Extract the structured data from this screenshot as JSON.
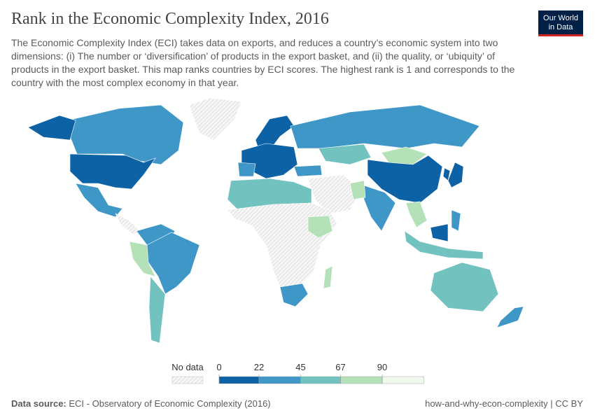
{
  "header": {
    "title": "Rank in the Economic Complexity Index, 2016",
    "subtitle": "The Economic Complexity Index (ECI) takes data on exports, and reduces a country’s economic system into two dimensions: (i) The number or ‘diversification’ of products in the export basket, and (ii) the quality, or ‘ubiquity’ of products in the export basket. This map ranks countries by ECI scores. The highest rank is 1 and corresponds to the country with the most complex economy in that year.",
    "logo": [
      "Our World",
      "in Data"
    ]
  },
  "chart_data": {
    "type": "choropleth",
    "legend": {
      "no_data": "No data",
      "bins": [
        0,
        22,
        45,
        67,
        90
      ],
      "colors": [
        "#0d62a5",
        "#3f97c8",
        "#72c2c0",
        "#b5e1b8",
        "#eef8ec"
      ]
    }
  },
  "footer": {
    "source_label": "Data source:",
    "source": "ECI - Observatory of Economic Complexity (2016)",
    "license": "how-and-why-econ-complexity | CC BY"
  }
}
